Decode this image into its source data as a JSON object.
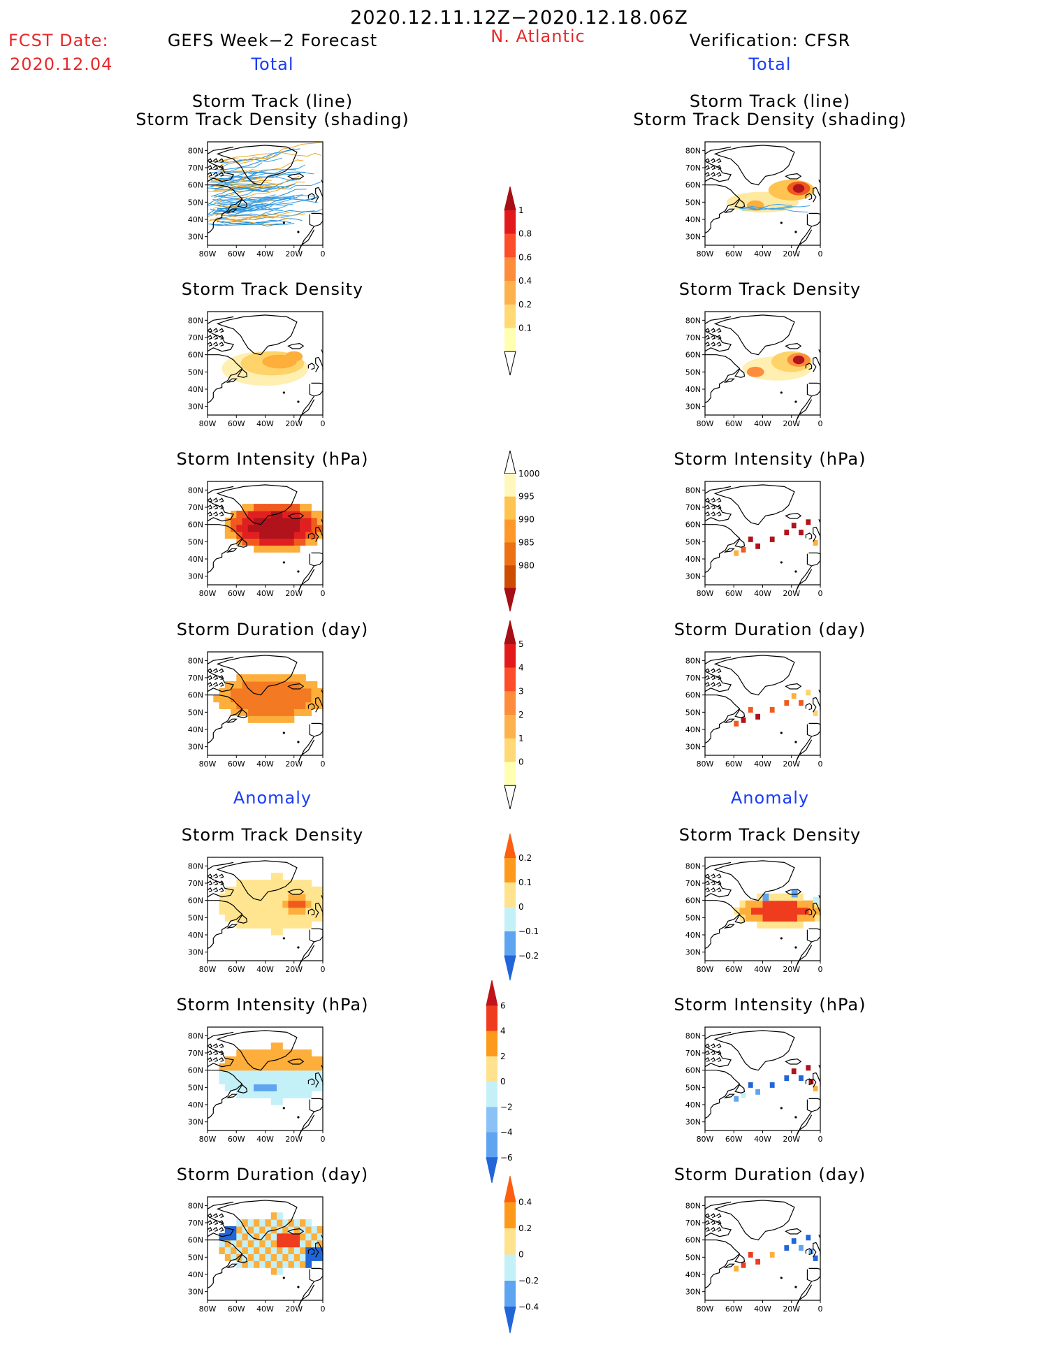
{
  "header": {
    "title": "2020.12.11.12Z−2020.12.18.06Z",
    "fcst_label": "FCST Date:",
    "fcst_date": "2020.12.04",
    "left_title": "GEFS Week−2 Forecast",
    "region": "N. Atlantic",
    "right_title": "Verification: CFSR",
    "total_label": "Total",
    "anomaly_label": "Anomaly"
  },
  "panel_titles": {
    "track_line": "Storm Track (line)",
    "track_density_shading": "Storm Track Density (shading)",
    "track_density": "Storm Track Density",
    "intensity": "Storm Intensity (hPa)",
    "duration": "Storm Duration (day)"
  },
  "axes": {
    "lat_ticks": [
      "80N",
      "70N",
      "60N",
      "50N",
      "40N",
      "30N"
    ],
    "lon_ticks": [
      "80W",
      "60W",
      "40W",
      "20W",
      "0"
    ]
  },
  "colorbars": [
    {
      "id": "track_density_total",
      "labels": [
        "1",
        "0.8",
        "0.6",
        "0.4",
        "0.2",
        "0.1"
      ],
      "colors": [
        "#a50f15",
        "#e31a1c",
        "#fc4e2a",
        "#fd8d3c",
        "#feb24c",
        "#fed976",
        "#ffffb2",
        "#ffffff"
      ]
    },
    {
      "id": "intensity_total",
      "labels": [
        "1000",
        "995",
        "990",
        "985",
        "980"
      ],
      "colors": [
        "#ffffff",
        "#fff7bc",
        "#fec44f",
        "#fe9929",
        "#ec7014",
        "#cc4c02",
        "#a50f15"
      ]
    },
    {
      "id": "duration_total",
      "labels": [
        "5",
        "4",
        "3",
        "2",
        "1",
        "0"
      ],
      "colors": [
        "#a50f15",
        "#e31a1c",
        "#fc4e2a",
        "#fd8d3c",
        "#feb24c",
        "#fed976",
        "#ffffb2",
        "#ffffff"
      ]
    },
    {
      "id": "track_density_anom",
      "labels": [
        "0.2",
        "0.1",
        "0",
        "−0.1",
        "−0.2"
      ],
      "colors": [
        "#fd5e0f",
        "#fd9a1b",
        "#fee28d",
        "#c4f0f8",
        "#5fa4f0",
        "#2166d8"
      ]
    },
    {
      "id": "intensity_anom",
      "labels": [
        "6",
        "4",
        "2",
        "0",
        "−2",
        "−4",
        "−6"
      ],
      "colors": [
        "#c0131a",
        "#f03c1e",
        "#fd9a1b",
        "#fee28d",
        "#c4f0f8",
        "#8ac2f5",
        "#5fa4f0",
        "#2166d8"
      ]
    },
    {
      "id": "duration_anom",
      "labels": [
        "0.4",
        "0.2",
        "0",
        "−0.2",
        "−0.4"
      ],
      "colors": [
        "#fd5e0f",
        "#fd9a1b",
        "#fee28d",
        "#c4f0f8",
        "#5fa4f0",
        "#2166d8"
      ]
    }
  ]
}
